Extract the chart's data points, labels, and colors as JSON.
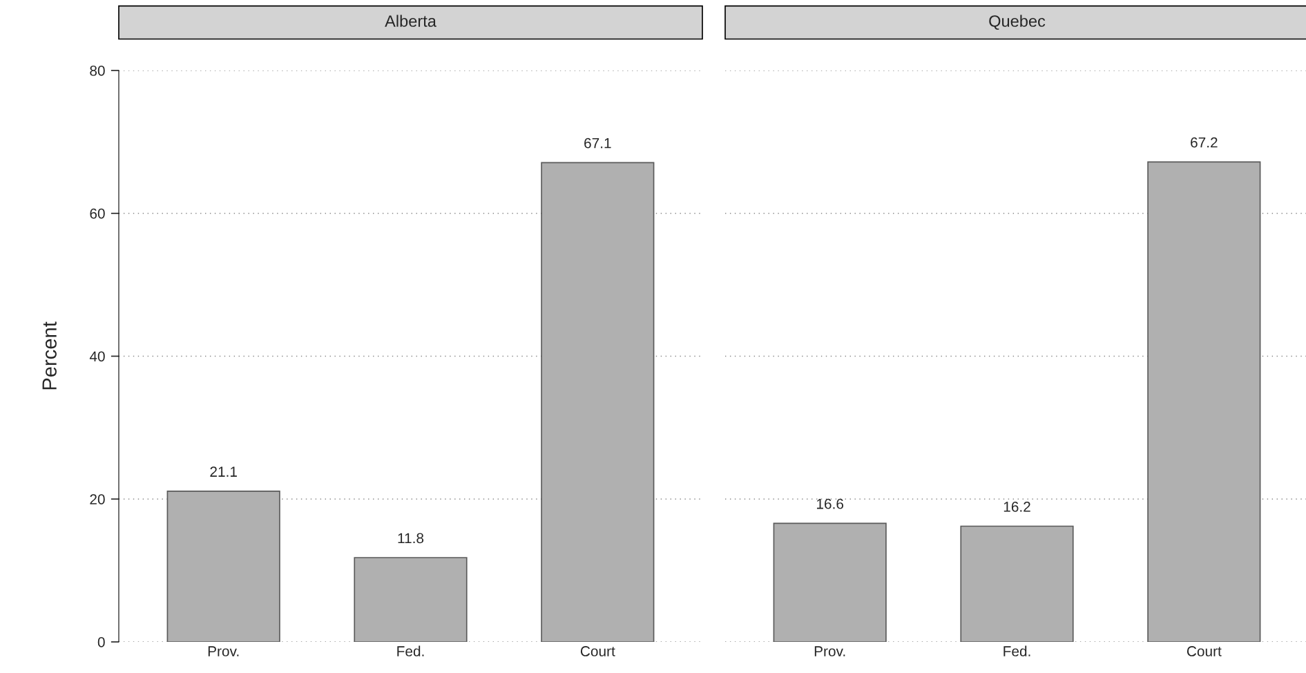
{
  "chart_data": [
    {
      "type": "bar",
      "title": "Alberta",
      "ylabel": "Percent",
      "categories": [
        "Prov.",
        "Fed.",
        "Court"
      ],
      "values": [
        21.1,
        11.8,
        67.1
      ],
      "color": "#b0b0b0",
      "ylim": [
        0,
        80
      ],
      "yticks": [
        0,
        20,
        40,
        60,
        80
      ],
      "grid": "y",
      "data_labels": true
    },
    {
      "type": "bar",
      "title": "Quebec",
      "categories": [
        "Prov.",
        "Fed.",
        "Court"
      ],
      "values": [
        16.6,
        16.2,
        67.2
      ],
      "color": "#b0b0b0",
      "ylim": [
        0,
        80
      ],
      "yticks": [
        0,
        20,
        40,
        60,
        80
      ],
      "grid": "y",
      "data_labels": true,
      "tick_labels": "x"
    }
  ]
}
